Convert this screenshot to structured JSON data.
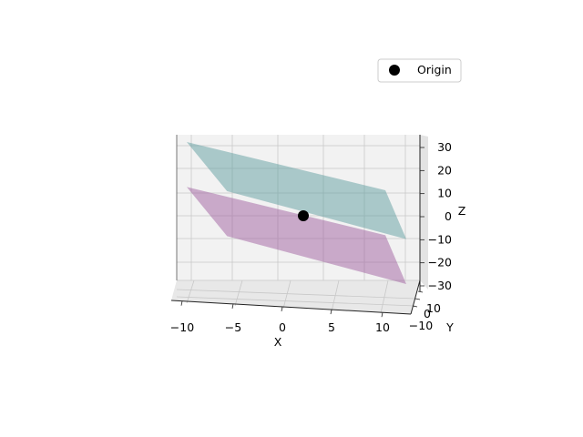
{
  "chart_data": {
    "type": "surface3d",
    "title": "",
    "xlabel": "X",
    "ylabel": "Y",
    "zlabel": "Z",
    "xlim": [
      -10,
      10
    ],
    "ylim": [
      -10,
      10
    ],
    "zlim": [
      -30,
      30
    ],
    "x_ticks": [
      -10,
      -5,
      0,
      5,
      10
    ],
    "y_ticks": [
      -10,
      0,
      10
    ],
    "z_ticks": [
      -30,
      -20,
      -10,
      0,
      10,
      20,
      30
    ],
    "grid": true,
    "surfaces": [
      {
        "color": "#5f9ea0",
        "opacity": 0.5,
        "z_at_corners": [
          30,
          10,
          -10,
          10
        ]
      },
      {
        "color": "#a05fa0",
        "opacity": 0.5,
        "z_at_corners": [
          10,
          -10,
          -30,
          -10
        ]
      }
    ],
    "points": [
      {
        "name": "Origin",
        "x": 0,
        "y": 0,
        "z": 0,
        "color": "#000000"
      }
    ],
    "legend": {
      "position": "top-right",
      "entries": [
        "Origin"
      ]
    }
  }
}
